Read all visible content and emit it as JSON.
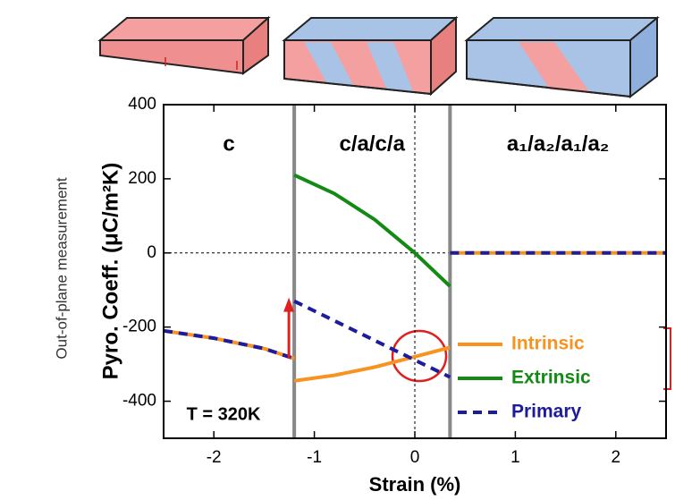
{
  "chart_data": {
    "type": "line",
    "y_label": "Pyro. Coeff. (μC/m²K)",
    "x_label": "Strain (%)",
    "side_label": "Out-of-plane measurement",
    "annotation": "T = 320K",
    "region_labels": [
      "c",
      "c/a/c/a",
      "a₁/a₂/a₁/a₂"
    ],
    "phase_boundaries": [
      -1.2,
      0.35
    ],
    "xlim": [
      -2.5,
      2.5
    ],
    "xticks": [
      -2,
      -1,
      0,
      1,
      2
    ],
    "ylim": [
      -500,
      400
    ],
    "yticks": [
      -400,
      -200,
      0,
      200,
      400
    ],
    "legend": "lower right",
    "series": [
      {
        "name": "Intrinsic",
        "color": "#f7931e",
        "style": "solid",
        "x": [
          -2.5,
          -2,
          -1.5,
          -1.2,
          null,
          -1.2,
          -0.8,
          -0.4,
          0,
          0.35,
          null,
          0.35,
          2.5
        ],
        "values": [
          -210,
          -230,
          -258,
          -285,
          null,
          -345,
          -330,
          -308,
          -280,
          -255,
          null,
          0,
          0
        ]
      },
      {
        "name": "Extrinsic",
        "color": "#138a13",
        "style": "solid",
        "x": [
          -1.2,
          -0.8,
          -0.4,
          0,
          0.35
        ],
        "values": [
          210,
          160,
          90,
          0,
          -90
        ]
      },
      {
        "name": "Primary",
        "color": "#1c1c9c",
        "style": "dashed",
        "x": [
          -2.5,
          -2,
          -1.5,
          -1.2,
          null,
          -1.2,
          -0.8,
          -0.4,
          0,
          0.35,
          null,
          0.35,
          2.5
        ],
        "values": [
          -210,
          -230,
          -258,
          -285,
          null,
          -130,
          -183,
          -236,
          -289,
          -335,
          null,
          0,
          0
        ]
      }
    ]
  }
}
